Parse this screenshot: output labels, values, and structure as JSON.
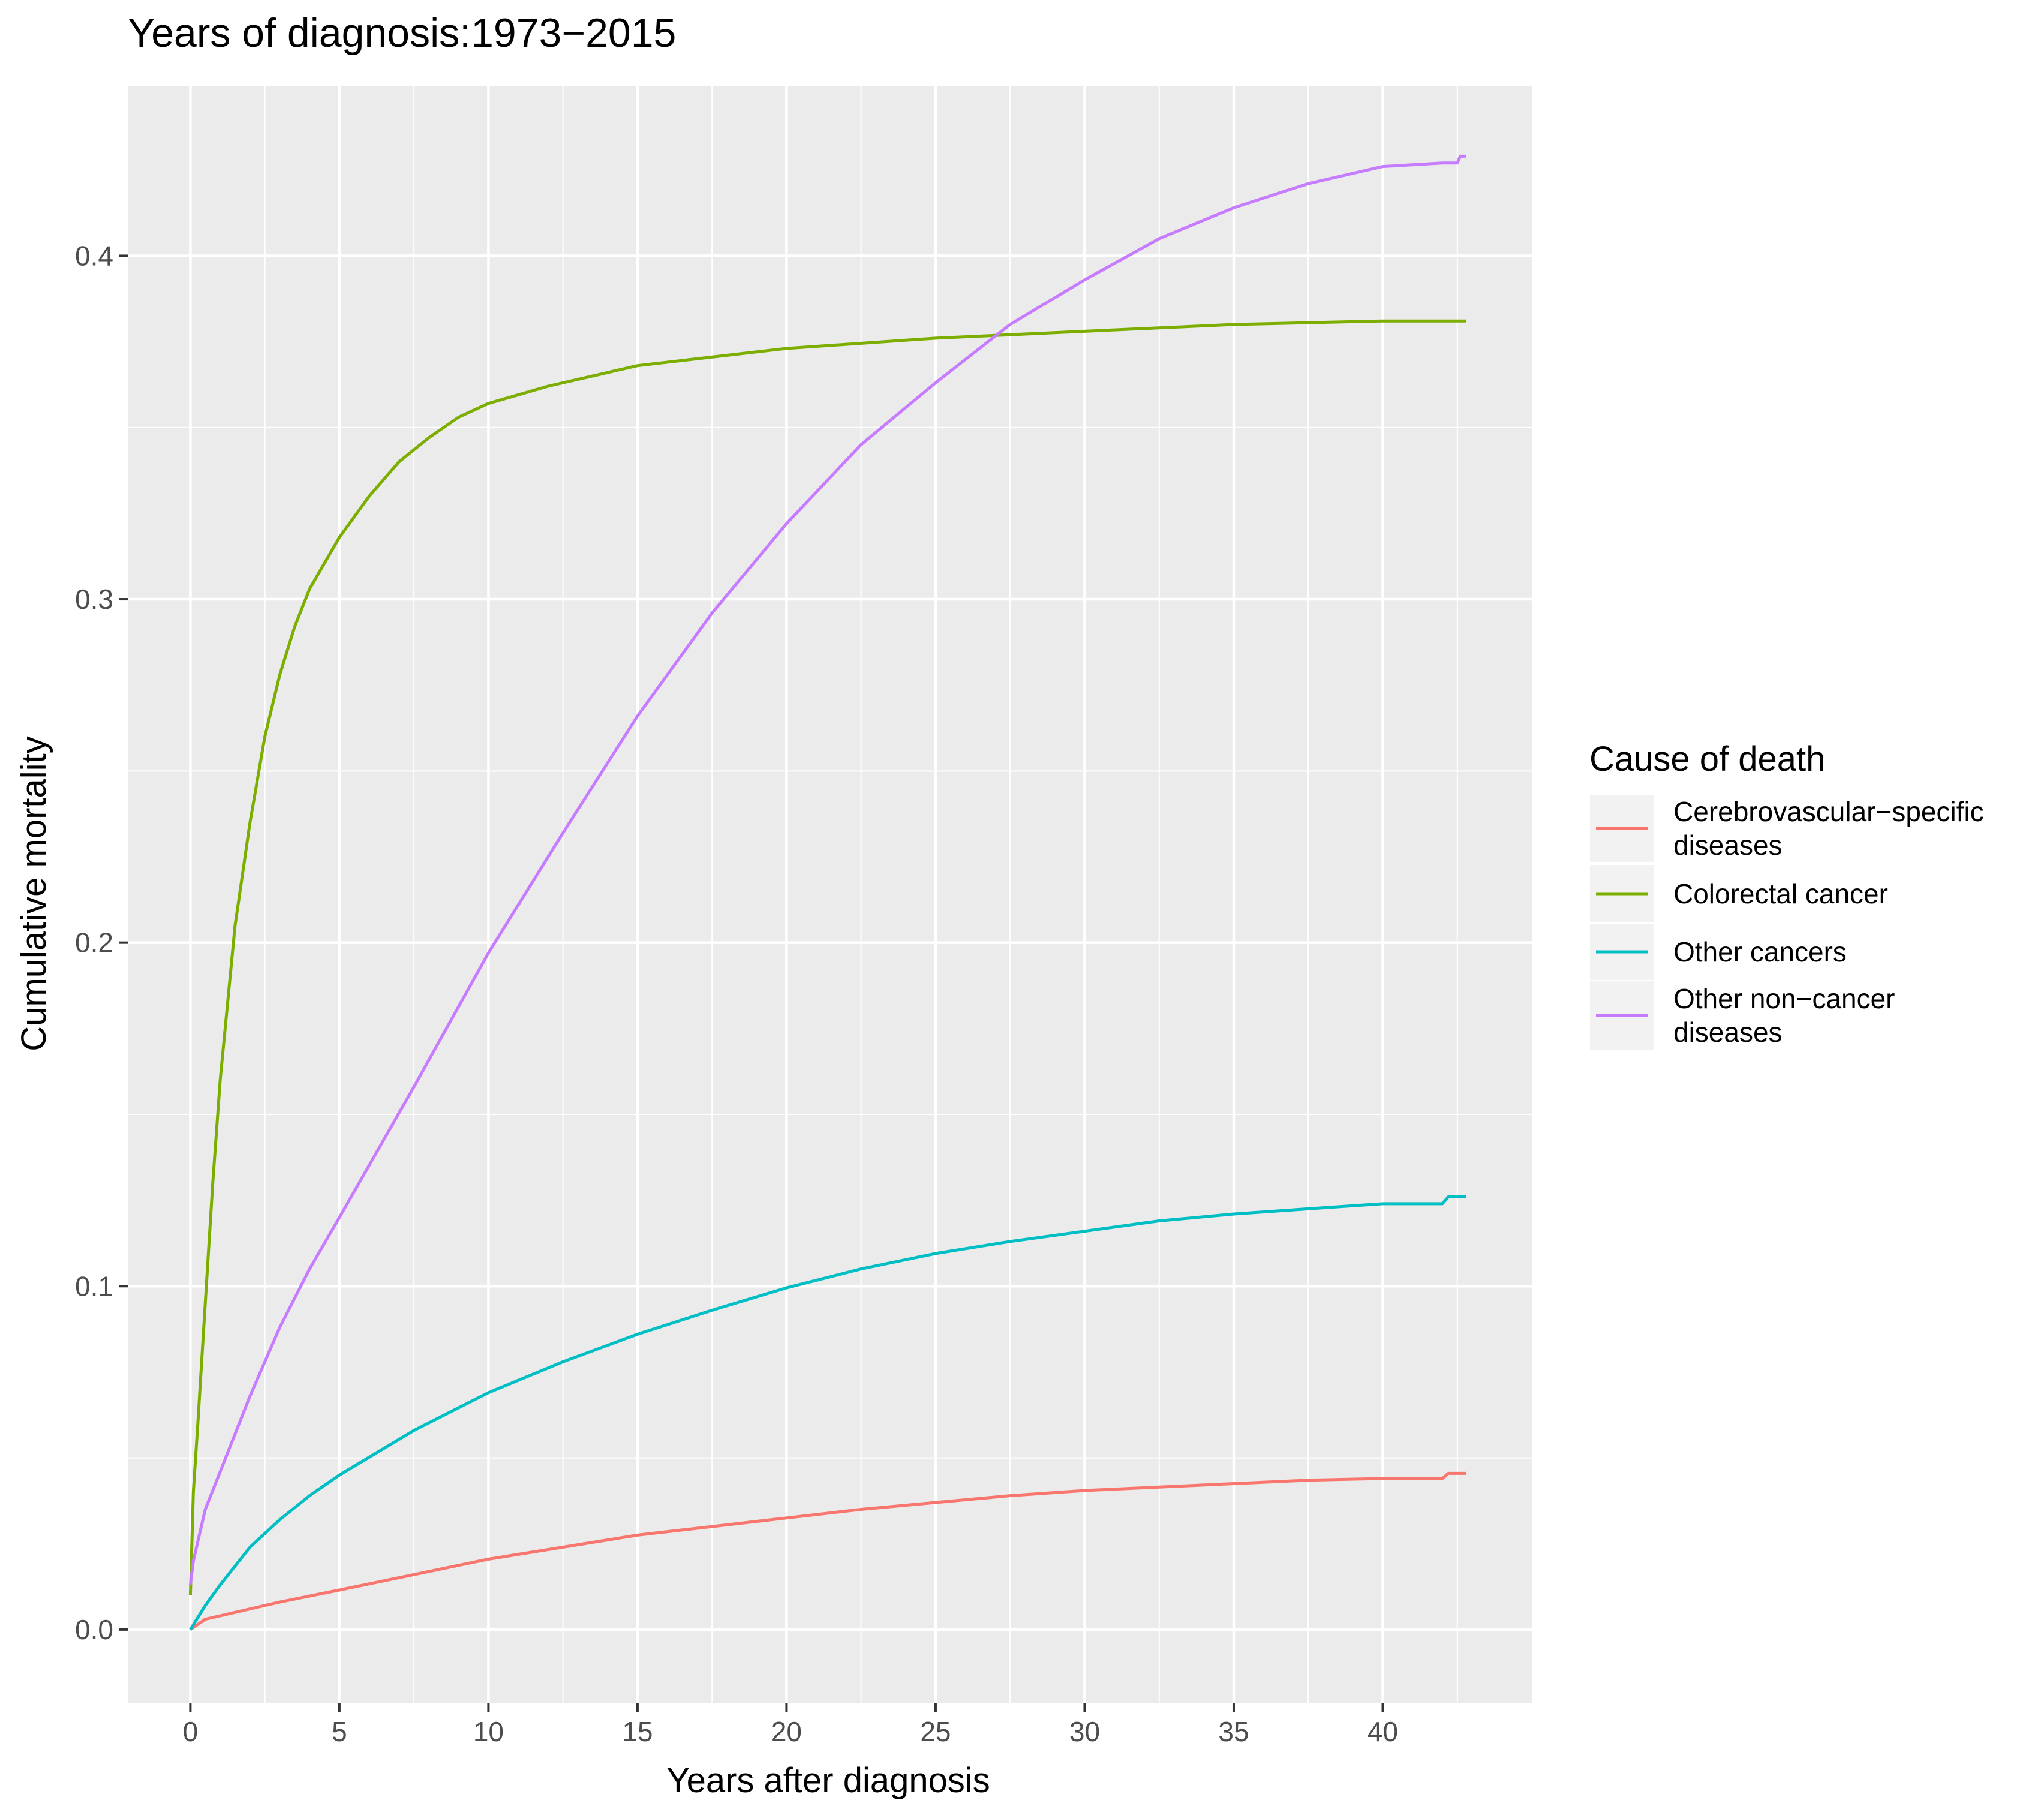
{
  "chart_data": {
    "type": "line",
    "title": "Years of diagnosis:1973−2015",
    "xlabel": "Years after diagnosis",
    "ylabel": "Cumulative mortality",
    "xlim": [
      -2.1,
      45.0
    ],
    "ylim": [
      -0.0215,
      0.4495
    ],
    "x_ticks": [
      0,
      5,
      10,
      15,
      20,
      25,
      30,
      35,
      40
    ],
    "x_tick_labels": [
      "0",
      "5",
      "10",
      "15",
      "20",
      "25",
      "30",
      "35",
      "40"
    ],
    "y_ticks": [
      0.0,
      0.1,
      0.2,
      0.3,
      0.4
    ],
    "y_tick_labels": [
      "0.0",
      "0.1",
      "0.2",
      "0.3",
      "0.4"
    ],
    "grid": true,
    "legend": {
      "title": "Cause of death",
      "position": "right"
    },
    "series": [
      {
        "name": "Cerebrovascular−specific diseases",
        "label_lines": [
          "Cerebrovascular−specific",
          "diseases"
        ],
        "color": "#F8766D",
        "points": [
          [
            0,
            0
          ],
          [
            0.5,
            0.003
          ],
          [
            1,
            0.004
          ],
          [
            2,
            0.006
          ],
          [
            3,
            0.008
          ],
          [
            5,
            0.0115
          ],
          [
            7.5,
            0.016
          ],
          [
            10,
            0.0205
          ],
          [
            12.5,
            0.024
          ],
          [
            15,
            0.0275
          ],
          [
            17.5,
            0.03
          ],
          [
            20,
            0.0325
          ],
          [
            22.5,
            0.035
          ],
          [
            25,
            0.037
          ],
          [
            27.5,
            0.039
          ],
          [
            30,
            0.0405
          ],
          [
            32.5,
            0.0415
          ],
          [
            35,
            0.0425
          ],
          [
            37.5,
            0.0435
          ],
          [
            40,
            0.044
          ],
          [
            42,
            0.044
          ],
          [
            42.2,
            0.0455
          ],
          [
            42.8,
            0.0455
          ]
        ]
      },
      {
        "name": "Colorectal cancer",
        "label_lines": [
          "Colorectal cancer"
        ],
        "color": "#7CAE00",
        "points": [
          [
            0,
            0.01
          ],
          [
            0.1,
            0.04
          ],
          [
            0.25,
            0.06
          ],
          [
            0.5,
            0.095
          ],
          [
            0.75,
            0.13
          ],
          [
            1,
            0.16
          ],
          [
            1.5,
            0.205
          ],
          [
            2,
            0.235
          ],
          [
            2.5,
            0.26
          ],
          [
            3,
            0.278
          ],
          [
            3.5,
            0.292
          ],
          [
            4,
            0.303
          ],
          [
            5,
            0.318
          ],
          [
            6,
            0.33
          ],
          [
            7,
            0.34
          ],
          [
            8,
            0.347
          ],
          [
            9,
            0.353
          ],
          [
            10,
            0.357
          ],
          [
            12,
            0.362
          ],
          [
            15,
            0.368
          ],
          [
            20,
            0.373
          ],
          [
            25,
            0.376
          ],
          [
            30,
            0.378
          ],
          [
            35,
            0.38
          ],
          [
            40,
            0.381
          ],
          [
            42.8,
            0.381
          ]
        ]
      },
      {
        "name": "Other cancers",
        "label_lines": [
          "Other cancers"
        ],
        "color": "#00BFC4",
        "points": [
          [
            0,
            0
          ],
          [
            0.5,
            0.007
          ],
          [
            1,
            0.013
          ],
          [
            2,
            0.024
          ],
          [
            3,
            0.032
          ],
          [
            4,
            0.039
          ],
          [
            5,
            0.045
          ],
          [
            7.5,
            0.058
          ],
          [
            10,
            0.069
          ],
          [
            12.5,
            0.078
          ],
          [
            15,
            0.086
          ],
          [
            17.5,
            0.093
          ],
          [
            20,
            0.0995
          ],
          [
            22.5,
            0.105
          ],
          [
            25,
            0.1095
          ],
          [
            27.5,
            0.113
          ],
          [
            30,
            0.116
          ],
          [
            32.5,
            0.119
          ],
          [
            35,
            0.121
          ],
          [
            37.5,
            0.1225
          ],
          [
            40,
            0.124
          ],
          [
            42,
            0.124
          ],
          [
            42.2,
            0.126
          ],
          [
            42.8,
            0.126
          ]
        ]
      },
      {
        "name": "Other non−cancer diseases",
        "label_lines": [
          "Other non−cancer",
          "diseases"
        ],
        "color": "#C77CFF",
        "points": [
          [
            0,
            0.013
          ],
          [
            0.1,
            0.02
          ],
          [
            0.5,
            0.035
          ],
          [
            1,
            0.046
          ],
          [
            2,
            0.068
          ],
          [
            3,
            0.088
          ],
          [
            4,
            0.105
          ],
          [
            5,
            0.12
          ],
          [
            7.5,
            0.158
          ],
          [
            10,
            0.197
          ],
          [
            12.5,
            0.232
          ],
          [
            15,
            0.266
          ],
          [
            17.5,
            0.296
          ],
          [
            20,
            0.322
          ],
          [
            22.5,
            0.345
          ],
          [
            25,
            0.363
          ],
          [
            27.5,
            0.38
          ],
          [
            30,
            0.393
          ],
          [
            32.5,
            0.405
          ],
          [
            35,
            0.414
          ],
          [
            37.5,
            0.421
          ],
          [
            40,
            0.426
          ],
          [
            42,
            0.427
          ],
          [
            42.5,
            0.427
          ],
          [
            42.6,
            0.429
          ],
          [
            42.8,
            0.429
          ]
        ]
      }
    ]
  }
}
